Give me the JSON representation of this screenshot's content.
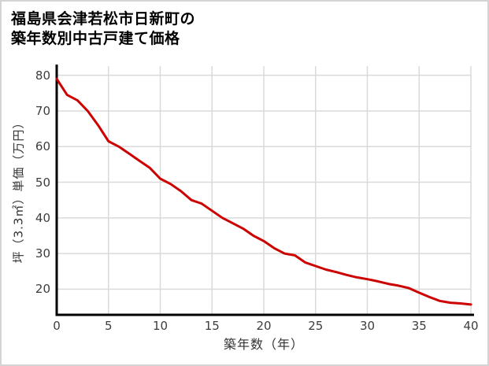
{
  "window": {
    "background": "#ffffff",
    "border_color": "#d4d4d4"
  },
  "title": {
    "line1": "福島県会津若松市日新町の",
    "line2": "築年数別中古戸建て価格",
    "color": "#000000"
  },
  "chart_data": {
    "type": "line",
    "title": "福島県会津若松市日新町の築年数別中古戸建て価格",
    "xlabel": "築年数（年）",
    "ylabel": "坪（3.3㎡）単価（万円）",
    "x": [
      0,
      1,
      2,
      3,
      4,
      5,
      6,
      7,
      8,
      9,
      10,
      11,
      12,
      13,
      14,
      15,
      16,
      17,
      18,
      19,
      20,
      21,
      22,
      23,
      24,
      25,
      26,
      27,
      28,
      29,
      30,
      31,
      32,
      33,
      34,
      35,
      36,
      37,
      38,
      39,
      40
    ],
    "values": [
      79,
      74.5,
      73,
      70,
      66,
      61.5,
      60,
      58,
      56,
      54,
      51,
      49.5,
      47.5,
      45,
      44,
      42,
      40,
      38.5,
      37,
      35,
      33.5,
      31.5,
      30,
      29.5,
      27.5,
      26.5,
      25.5,
      24.8,
      24,
      23.3,
      22.8,
      22.2,
      21.5,
      21,
      20.3,
      19,
      17.8,
      16.7,
      16.2,
      16,
      15.7
    ],
    "xticks": [
      0,
      5,
      10,
      15,
      20,
      25,
      30,
      35,
      40
    ],
    "yticks": [
      20,
      30,
      40,
      50,
      60,
      70,
      80
    ],
    "xlim": [
      0,
      40
    ],
    "ylim": [
      12.8,
      82.8
    ],
    "grid": true,
    "legend": false,
    "line_color": "#cc0000",
    "line_width": 3,
    "grid_color": "#dadada",
    "axis_color": "#000000",
    "tick_label_color": "#3d3d3d"
  }
}
